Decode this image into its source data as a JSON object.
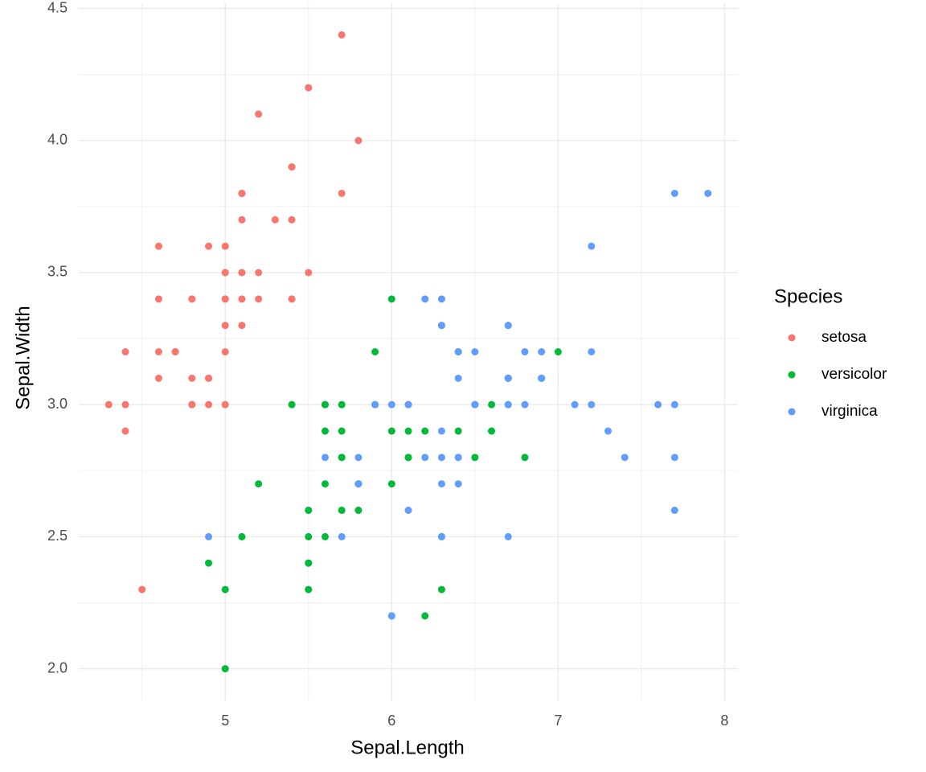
{
  "chart_data": {
    "type": "scatter",
    "x_label": "Sepal.Length",
    "y_label": "Sepal.Width",
    "xlim": [
      4.12,
      8.08
    ],
    "ylim": [
      1.88,
      4.52
    ],
    "xticks": [
      5,
      6,
      7,
      8
    ],
    "yticks": [
      {
        "value": 2.0,
        "label": "2.0"
      },
      2.5,
      {
        "value": 3.0,
        "label": "3.0"
      },
      3.5,
      {
        "value": 4.0,
        "label": "4.0"
      },
      4.5
    ],
    "grid": true,
    "legend_title": "Species",
    "legend_position": "right",
    "series": [
      {
        "name": "setosa",
        "color": "#F8766D",
        "x": [
          5.1,
          4.9,
          4.7,
          4.6,
          5.0,
          5.4,
          4.6,
          5.0,
          4.4,
          4.9,
          5.4,
          4.8,
          4.8,
          4.3,
          5.8,
          5.7,
          5.4,
          5.1,
          5.7,
          5.1,
          5.4,
          5.1,
          4.6,
          5.1,
          4.8,
          5.0,
          5.0,
          5.2,
          5.2,
          4.7,
          4.8,
          5.4,
          5.2,
          5.5,
          4.9,
          5.0,
          5.5,
          4.9,
          4.4,
          5.1,
          5.0,
          4.5,
          4.4,
          5.0,
          5.1,
          4.8,
          5.1,
          4.6,
          5.3,
          5.0
        ],
        "y": [
          3.5,
          3.0,
          3.2,
          3.1,
          3.6,
          3.9,
          3.4,
          3.4,
          2.9,
          3.1,
          3.7,
          3.4,
          3.0,
          3.0,
          4.0,
          4.4,
          3.9,
          3.5,
          3.8,
          3.8,
          3.4,
          3.7,
          3.6,
          3.3,
          3.4,
          3.0,
          3.4,
          3.5,
          3.4,
          3.2,
          3.1,
          3.4,
          4.1,
          4.2,
          3.1,
          3.2,
          3.5,
          3.6,
          3.0,
          3.4,
          3.5,
          2.3,
          3.2,
          3.5,
          3.8,
          3.0,
          3.8,
          3.2,
          3.7,
          3.3
        ]
      },
      {
        "name": "versicolor",
        "color": "#00BA38",
        "x": [
          7.0,
          6.4,
          6.9,
          5.5,
          6.5,
          5.7,
          6.3,
          4.9,
          6.6,
          5.2,
          5.0,
          5.9,
          6.0,
          6.1,
          5.6,
          6.7,
          5.6,
          5.8,
          6.2,
          5.6,
          5.9,
          6.1,
          6.3,
          6.1,
          6.4,
          6.6,
          6.8,
          6.7,
          6.0,
          5.7,
          5.5,
          5.5,
          5.8,
          6.0,
          5.4,
          6.0,
          6.7,
          6.3,
          5.6,
          5.5,
          5.5,
          6.1,
          5.8,
          5.0,
          5.6,
          5.7,
          5.7,
          6.2,
          5.1,
          5.7
        ],
        "y": [
          3.2,
          3.2,
          3.1,
          2.3,
          2.8,
          2.8,
          3.3,
          2.4,
          2.9,
          2.7,
          2.0,
          3.0,
          2.2,
          2.9,
          2.9,
          3.1,
          3.0,
          2.7,
          2.2,
          2.5,
          3.2,
          2.8,
          2.5,
          2.8,
          2.9,
          3.0,
          2.8,
          3.0,
          2.9,
          2.6,
          2.4,
          2.4,
          2.7,
          2.7,
          3.0,
          3.4,
          3.1,
          2.3,
          3.0,
          2.5,
          2.6,
          3.0,
          2.6,
          2.3,
          2.7,
          3.0,
          2.9,
          2.9,
          2.5,
          2.8
        ]
      },
      {
        "name": "virginica",
        "color": "#619CFF",
        "x": [
          6.3,
          5.8,
          7.1,
          6.3,
          6.5,
          7.6,
          4.9,
          7.3,
          6.7,
          7.2,
          6.5,
          6.4,
          6.8,
          5.7,
          5.8,
          6.4,
          6.5,
          7.7,
          7.7,
          6.0,
          6.9,
          5.6,
          7.7,
          6.3,
          6.7,
          7.2,
          6.2,
          6.1,
          6.4,
          7.2,
          7.4,
          7.9,
          6.4,
          6.3,
          6.1,
          7.7,
          6.3,
          6.4,
          6.0,
          6.9,
          6.7,
          6.9,
          5.8,
          6.8,
          6.7,
          6.7,
          6.3,
          6.5,
          6.2,
          5.9
        ],
        "y": [
          3.3,
          2.7,
          3.0,
          2.9,
          3.0,
          3.0,
          2.5,
          2.9,
          2.5,
          3.6,
          3.2,
          2.7,
          3.0,
          2.5,
          2.8,
          3.2,
          3.0,
          3.8,
          2.6,
          2.2,
          3.2,
          2.8,
          2.8,
          2.7,
          3.3,
          3.2,
          2.8,
          3.0,
          2.8,
          3.0,
          2.8,
          3.8,
          2.8,
          2.8,
          2.6,
          3.0,
          3.4,
          3.1,
          3.0,
          3.1,
          3.1,
          3.1,
          2.7,
          3.2,
          3.3,
          3.0,
          2.5,
          3.0,
          3.4,
          3.0
        ]
      }
    ]
  }
}
